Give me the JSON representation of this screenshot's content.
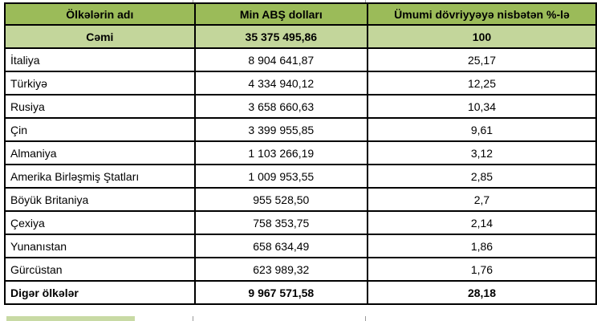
{
  "colors": {
    "header_green": "#9bbb59",
    "total_row_green": "#c3d69b",
    "border_black": "#000000",
    "row_white": "#ffffff"
  },
  "table": {
    "columns": [
      {
        "label": "Ölkələrin adı"
      },
      {
        "label": "Min ABŞ dolları"
      },
      {
        "label": "Ümumi dövriyyəyə nisbətən %-lə"
      }
    ],
    "rows": [
      {
        "kind": "total",
        "name": "Cəmi",
        "amount": "35 375 495,86",
        "percent": "100"
      },
      {
        "kind": "data",
        "name": "İtaliya",
        "amount": "8 904 641,87",
        "percent": "25,17"
      },
      {
        "kind": "data",
        "name": "Türkiyə",
        "amount": "4 334 940,12",
        "percent": "12,25"
      },
      {
        "kind": "data",
        "name": "Rusiya",
        "amount": "3 658 660,63",
        "percent": "10,34"
      },
      {
        "kind": "data",
        "name": "Çin",
        "amount": "3 399 955,85",
        "percent": "9,61"
      },
      {
        "kind": "data",
        "name": "Almaniya",
        "amount": "1 103 266,19",
        "percent": "3,12"
      },
      {
        "kind": "data",
        "name": "Amerika Birləşmiş Ştatları",
        "amount": "1 009 953,55",
        "percent": "2,85"
      },
      {
        "kind": "data",
        "name": "Böyük Britaniya",
        "amount": "955 528,50",
        "percent": "2,7"
      },
      {
        "kind": "data",
        "name": "Çexiya",
        "amount": "758 353,75",
        "percent": "2,14"
      },
      {
        "kind": "data",
        "name": "Yunanıstan",
        "amount": "658 634,49",
        "percent": "1,86"
      },
      {
        "kind": "data",
        "name": "Gürcüstan",
        "amount": "623 989,32",
        "percent": "1,76"
      },
      {
        "kind": "footer",
        "name": "Digər ölkələr",
        "amount": "9 967 571,58",
        "percent": "28,18"
      }
    ]
  },
  "chart_data": {
    "type": "table",
    "title": "",
    "columns": [
      "Ölkələrin adı",
      "Min ABŞ dolları",
      "Ümumi dövriyyəyə nisbətən %-lə"
    ],
    "rows": [
      [
        "Cəmi",
        "35 375 495,86",
        "100"
      ],
      [
        "İtaliya",
        "8 904 641,87",
        "25,17"
      ],
      [
        "Türkiyə",
        "4 334 940,12",
        "12,25"
      ],
      [
        "Rusiya",
        "3 658 660,63",
        "10,34"
      ],
      [
        "Çin",
        "3 399 955,85",
        "9,61"
      ],
      [
        "Almaniya",
        "1 103 266,19",
        "3,12"
      ],
      [
        "Amerika Birləşmiş Ştatları",
        "1 009 953,55",
        "2,85"
      ],
      [
        "Böyük Britaniya",
        "955 528,50",
        "2,7"
      ],
      [
        "Çexiya",
        "758 353,75",
        "2,14"
      ],
      [
        "Yunanıstan",
        "658 634,49",
        "1,86"
      ],
      [
        "Gürcüstan",
        "623 989,32",
        "1,76"
      ],
      [
        "Digər ölkələr",
        "9 967 571,58",
        "28,18"
      ]
    ],
    "numeric": {
      "total_amount_thousand_usd": 35375495.86,
      "total_percent": 100,
      "categories": [
        "İtaliya",
        "Türkiyə",
        "Rusiya",
        "Çin",
        "Almaniya",
        "Amerika Birləşmiş Ştatları",
        "Böyük Britaniya",
        "Çexiya",
        "Yunanıstan",
        "Gürcüstan",
        "Digər ölkələr"
      ],
      "amounts_thousand_usd": [
        8904641.87,
        4334940.12,
        3658660.63,
        3399955.85,
        1103266.19,
        1009953.55,
        955528.5,
        758353.75,
        658634.49,
        623989.32,
        9967571.58
      ],
      "percent_of_turnover": [
        25.17,
        12.25,
        10.34,
        9.61,
        3.12,
        2.85,
        2.7,
        2.14,
        1.86,
        1.76,
        28.18
      ]
    },
    "layout": {
      "header_fill": "#9bbb59",
      "total_row_fill": "#c3d69b",
      "grid": true
    }
  }
}
